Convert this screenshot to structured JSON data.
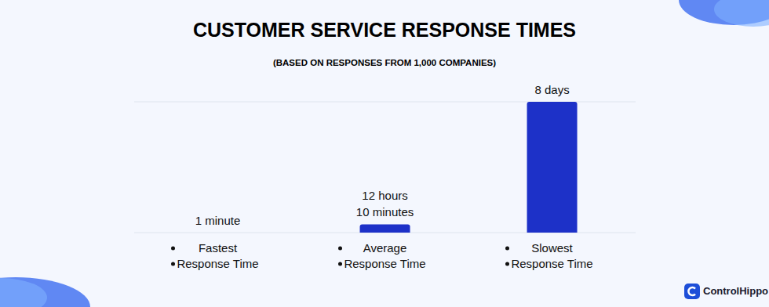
{
  "chart_data": {
    "type": "bar",
    "title": "CUSTOMER SERVICE RESPONSE TIMES",
    "subtitle": "(BASED ON RESPONSES FROM 1,000 COMPANIES)",
    "categories": [
      "Fastest Response Time",
      "Average Response Time",
      "Slowest Response Time"
    ],
    "values": [
      1,
      730,
      11520
    ],
    "value_labels": [
      "1 minute",
      "12 hours 10 minutes",
      "8 days"
    ],
    "color": "#1d31c8",
    "ylim": [
      0,
      11520
    ],
    "yticks": [
      0,
      2880,
      5760,
      8640,
      11520
    ],
    "grid": true,
    "data_labels": true,
    "tick_labels": "x",
    "brand": "ControlHippo"
  }
}
